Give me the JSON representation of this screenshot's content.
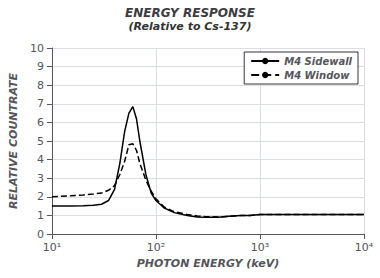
{
  "chart_data": {
    "type": "line",
    "title": "ENERGY RESPONSE",
    "subtitle": "(Relative to Cs-137)",
    "x_label": "PHOTON ENERGY (keV)",
    "y_label": "RELATIVE COUNTRATE",
    "log": "x",
    "x": [
      10,
      15,
      20,
      25,
      30,
      35,
      40,
      45,
      50,
      55,
      60,
      65,
      70,
      80,
      90,
      100,
      120,
      150,
      200,
      250,
      300,
      400,
      500,
      662,
      800,
      1000,
      2000,
      5000,
      10000
    ],
    "series": [
      {
        "name": "M4 Sidewall",
        "color": "#000000",
        "line_style": "solid",
        "values": [
          1.5,
          1.5,
          1.52,
          1.55,
          1.6,
          1.8,
          2.4,
          3.8,
          5.5,
          6.5,
          6.85,
          6.2,
          5.0,
          3.2,
          2.2,
          1.8,
          1.4,
          1.15,
          1.0,
          0.92,
          0.9,
          0.9,
          0.95,
          1.0,
          1.0,
          1.05,
          1.05,
          1.05,
          1.05
        ]
      },
      {
        "name": "M4 Window",
        "color": "#000000",
        "line_style": "dashed",
        "values": [
          2.0,
          2.05,
          2.1,
          2.15,
          2.2,
          2.35,
          2.6,
          3.2,
          3.9,
          4.8,
          4.85,
          4.5,
          3.8,
          2.9,
          2.3,
          1.9,
          1.45,
          1.2,
          1.05,
          0.97,
          0.93,
          0.92,
          0.95,
          1.0,
          1.0,
          1.05,
          1.05,
          1.05,
          1.05
        ]
      }
    ],
    "xlim": [
      10,
      10000
    ],
    "xticks": [
      {
        "value": 10,
        "label": "10¹"
      },
      {
        "value": 100,
        "label": "10²"
      },
      {
        "value": 1000,
        "label": "10³"
      },
      {
        "value": 10000,
        "label": "10⁴"
      }
    ],
    "ylim": [
      0,
      10
    ],
    "yticks": [
      0,
      1,
      2,
      3,
      4,
      5,
      6,
      7,
      8,
      9,
      10
    ],
    "grid": true,
    "legend": "upper right"
  }
}
